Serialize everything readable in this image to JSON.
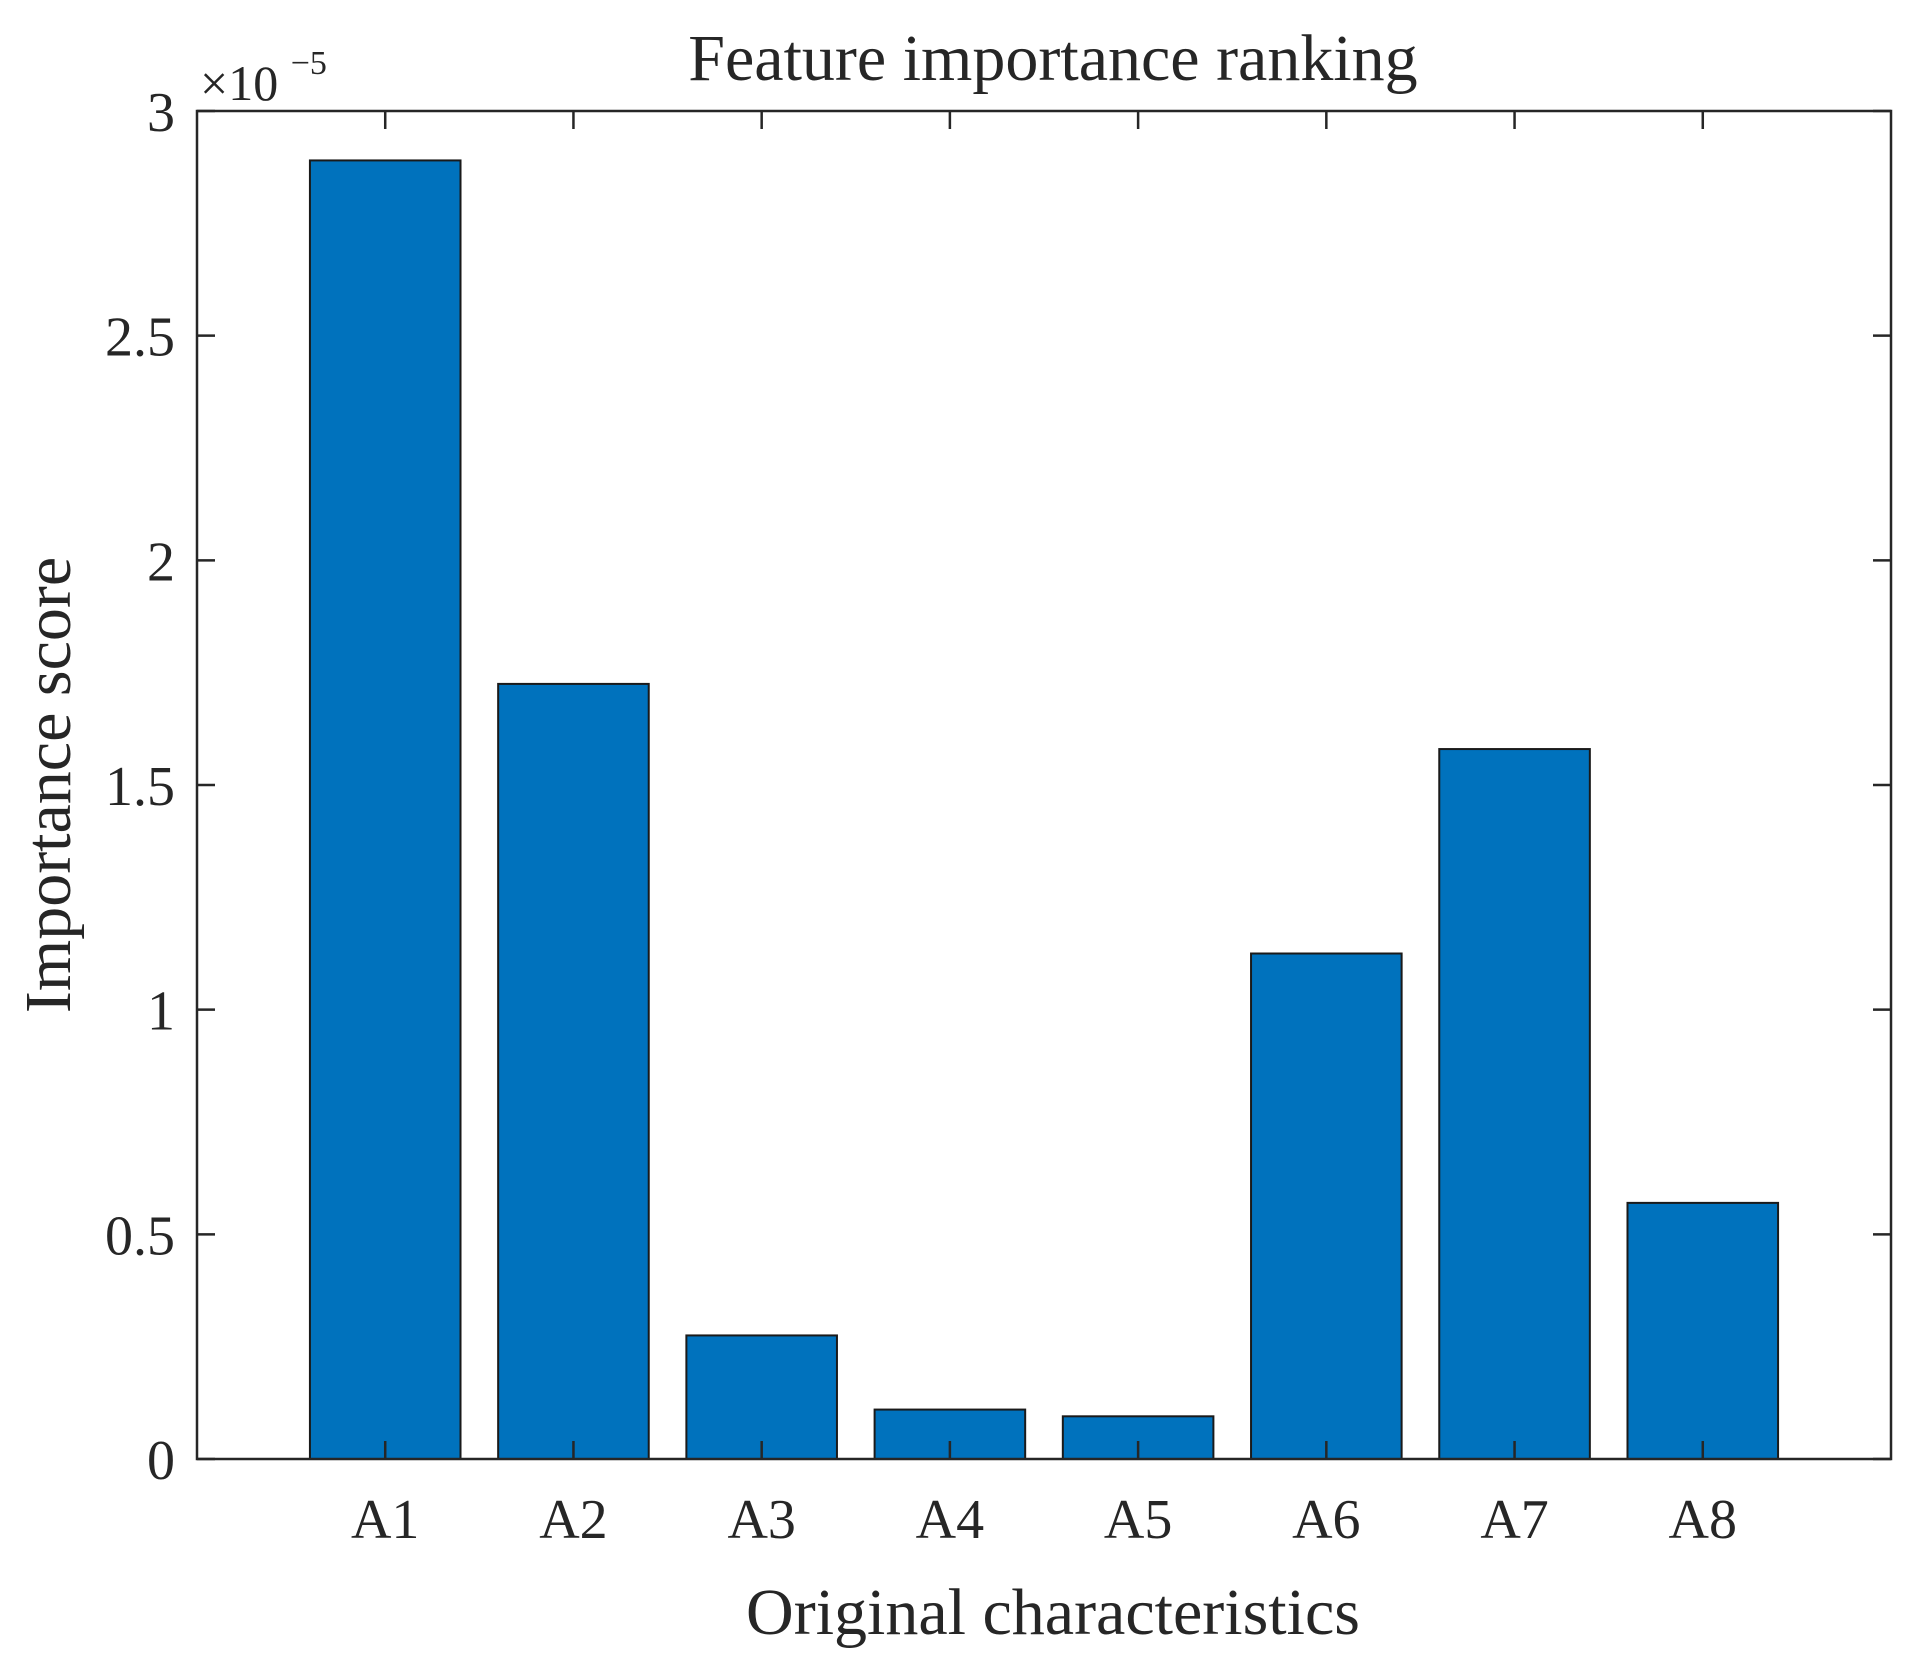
{
  "chart_data": {
    "type": "bar",
    "title": "Feature importance ranking",
    "xlabel": "Original characteristics",
    "ylabel": "Importance score",
    "y_exponent_label": "×10",
    "y_exponent_power": "−5",
    "categories": [
      "A1",
      "A2",
      "A3",
      "A4",
      "A5",
      "A6",
      "A7",
      "A8"
    ],
    "values": [
      2.89e-05,
      1.725e-05,
      2.75e-06,
      1.1e-06,
      9.5e-07,
      1.125e-05,
      1.58e-05,
      5.7e-06
    ],
    "ylim": [
      0,
      3e-05
    ],
    "yticks": [
      0,
      5e-06,
      1e-05,
      1.5e-05,
      2e-05,
      2.5e-05,
      3e-05
    ],
    "ytick_labels": [
      "0",
      "0.5",
      "1",
      "1.5",
      "2",
      "2.5",
      "3"
    ],
    "grid": false,
    "box": true,
    "colors": {
      "bar_fill": "#0072BD",
      "bar_edge": "#1a1a1a",
      "axis": "#262626",
      "background": "#ffffff"
    }
  }
}
